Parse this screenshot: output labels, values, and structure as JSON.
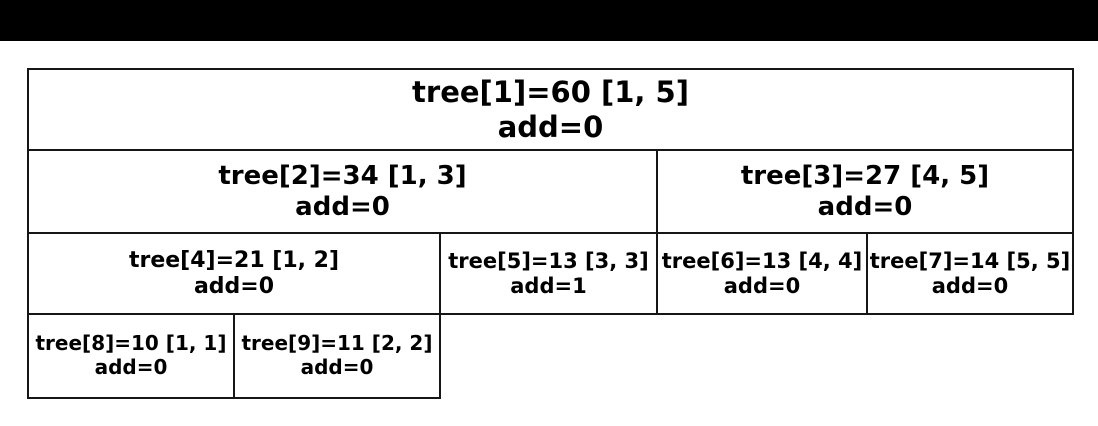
{
  "colors": {
    "letterbox": "#000000",
    "background": "#ffffff",
    "border": "#161616",
    "text": "#000000"
  },
  "diagram": {
    "kind": "segment-tree-table",
    "total_range_label": "[1, 5]"
  },
  "tree": {
    "nodes": [
      {
        "index": 1,
        "value": 60,
        "range": "[1, 5]",
        "add": 0,
        "line1": "tree[1]=60 [1, 5]",
        "line2": "add=0"
      },
      {
        "index": 2,
        "value": 34,
        "range": "[1, 3]",
        "add": 0,
        "line1": "tree[2]=34 [1, 3]",
        "line2": "add=0"
      },
      {
        "index": 3,
        "value": 27,
        "range": "[4, 5]",
        "add": 0,
        "line1": "tree[3]=27 [4, 5]",
        "line2": "add=0"
      },
      {
        "index": 4,
        "value": 21,
        "range": "[1, 2]",
        "add": 0,
        "line1": "tree[4]=21 [1, 2]",
        "line2": "add=0"
      },
      {
        "index": 5,
        "value": 13,
        "range": "[3, 3]",
        "add": 1,
        "line1": "tree[5]=13 [3, 3]",
        "line2": "add=1"
      },
      {
        "index": 6,
        "value": 13,
        "range": "[4, 4]",
        "add": 0,
        "line1": "tree[6]=13 [4, 4]",
        "line2": "add=0"
      },
      {
        "index": 7,
        "value": 14,
        "range": "[5, 5]",
        "add": 0,
        "line1": "tree[7]=14 [5, 5]",
        "line2": "add=0"
      },
      {
        "index": 8,
        "value": 10,
        "range": "[1, 1]",
        "add": 0,
        "line1": "tree[8]=10 [1, 1]",
        "line2": "add=0"
      },
      {
        "index": 9,
        "value": 11,
        "range": "[2, 2]",
        "add": 0,
        "line1": "tree[9]=11 [2, 2]",
        "line2": "add=0"
      }
    ]
  }
}
